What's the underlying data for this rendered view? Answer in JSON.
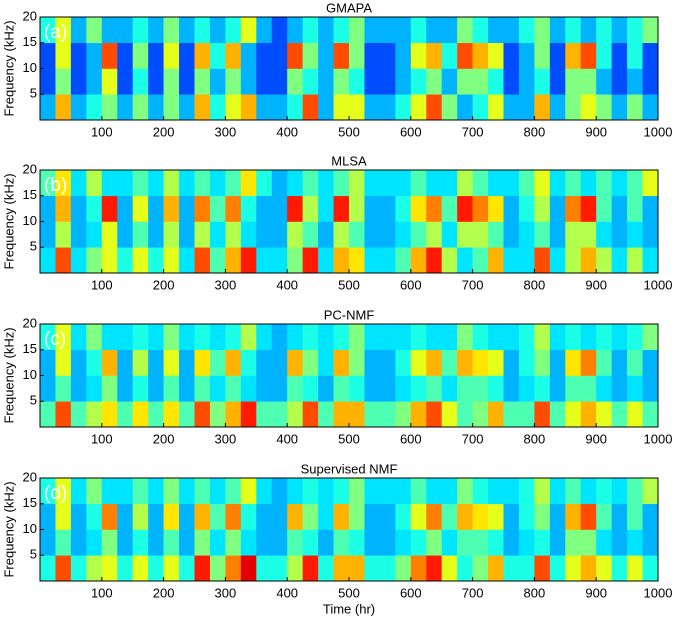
{
  "chart_data": [
    {
      "type": "heatmap",
      "title": "GMAPA",
      "panel_label": "(a)",
      "ylabel": "Frequency (kHz)",
      "colormap": "jet",
      "xlim": [
        0,
        1000
      ],
      "xticks": [
        100,
        200,
        300,
        400,
        500,
        600,
        700,
        800,
        900,
        1000
      ],
      "ylim": [
        0,
        20
      ],
      "yticks": [
        5,
        10,
        15,
        20
      ],
      "xbins": [
        0,
        25,
        50,
        75,
        100,
        125,
        150,
        175,
        200,
        225,
        250,
        275,
        300,
        325,
        350,
        375,
        400,
        425,
        450,
        475,
        500,
        525,
        550,
        575,
        600,
        625,
        650,
        675,
        700,
        725,
        750,
        775,
        800,
        825,
        850,
        875,
        900,
        925,
        950,
        975,
        1000
      ],
      "ybins": [
        0,
        5,
        10,
        15,
        20
      ],
      "z": [
        [
          0.3,
          0.7,
          0.3,
          0.4,
          0.5,
          0.3,
          0.5,
          0.3,
          0.5,
          0.3,
          0.7,
          0.4,
          0.6,
          0.7,
          0.3,
          0.3,
          0.4,
          0.8,
          0.3,
          0.6,
          0.6,
          0.3,
          0.3,
          0.4,
          0.6,
          0.8,
          0.5,
          0.3,
          0.4,
          0.6,
          0.3,
          0.3,
          0.7,
          0.3,
          0.5,
          0.6,
          0.5,
          0.3,
          0.5,
          0.3
        ],
        [
          0.2,
          0.5,
          0.2,
          0.3,
          0.6,
          0.2,
          0.4,
          0.2,
          0.5,
          0.2,
          0.5,
          0.3,
          0.5,
          0.3,
          0.2,
          0.2,
          0.5,
          0.4,
          0.3,
          0.5,
          0.4,
          0.2,
          0.2,
          0.3,
          0.4,
          0.5,
          0.3,
          0.5,
          0.5,
          0.4,
          0.2,
          0.3,
          0.4,
          0.2,
          0.5,
          0.5,
          0.3,
          0.2,
          0.3,
          0.2
        ],
        [
          0.2,
          0.6,
          0.2,
          0.3,
          0.8,
          0.2,
          0.5,
          0.2,
          0.6,
          0.2,
          0.7,
          0.4,
          0.7,
          0.3,
          0.2,
          0.2,
          0.8,
          0.5,
          0.3,
          0.8,
          0.5,
          0.2,
          0.2,
          0.3,
          0.6,
          0.7,
          0.4,
          0.8,
          0.7,
          0.6,
          0.2,
          0.3,
          0.5,
          0.2,
          0.7,
          0.8,
          0.4,
          0.2,
          0.4,
          0.2
        ],
        [
          0.4,
          0.6,
          0.3,
          0.5,
          0.3,
          0.3,
          0.4,
          0.3,
          0.5,
          0.3,
          0.4,
          0.3,
          0.4,
          0.6,
          0.3,
          0.2,
          0.3,
          0.4,
          0.3,
          0.4,
          0.5,
          0.3,
          0.3,
          0.3,
          0.4,
          0.3,
          0.3,
          0.5,
          0.4,
          0.3,
          0.3,
          0.4,
          0.5,
          0.3,
          0.4,
          0.3,
          0.4,
          0.3,
          0.4,
          0.5
        ]
      ]
    },
    {
      "type": "heatmap",
      "title": "MLSA",
      "panel_label": "(b)",
      "ylabel": "Frequency (kHz)",
      "colormap": "jet",
      "xlim": [
        0,
        1000
      ],
      "xticks": [
        100,
        200,
        300,
        400,
        500,
        600,
        700,
        800,
        900,
        1000
      ],
      "ylim": [
        0,
        20
      ],
      "yticks": [
        5,
        10,
        15,
        20
      ],
      "xbins": [
        0,
        25,
        50,
        75,
        100,
        125,
        150,
        175,
        200,
        225,
        250,
        275,
        300,
        325,
        350,
        375,
        400,
        425,
        450,
        475,
        500,
        525,
        550,
        575,
        600,
        625,
        650,
        675,
        700,
        725,
        750,
        775,
        800,
        825,
        850,
        875,
        900,
        925,
        950,
        975,
        1000
      ],
      "ybins": [
        0,
        5,
        10,
        15,
        20
      ],
      "z": [
        [
          0.35,
          0.8,
          0.35,
          0.5,
          0.6,
          0.4,
          0.6,
          0.4,
          0.6,
          0.35,
          0.8,
          0.45,
          0.7,
          0.85,
          0.35,
          0.35,
          0.5,
          0.85,
          0.35,
          0.7,
          0.65,
          0.35,
          0.35,
          0.45,
          0.7,
          0.85,
          0.55,
          0.35,
          0.45,
          0.7,
          0.35,
          0.35,
          0.8,
          0.35,
          0.55,
          0.7,
          0.55,
          0.35,
          0.55,
          0.35
        ],
        [
          0.3,
          0.55,
          0.3,
          0.35,
          0.6,
          0.3,
          0.45,
          0.3,
          0.55,
          0.3,
          0.55,
          0.35,
          0.55,
          0.35,
          0.3,
          0.3,
          0.55,
          0.45,
          0.3,
          0.55,
          0.45,
          0.3,
          0.3,
          0.35,
          0.45,
          0.55,
          0.35,
          0.55,
          0.55,
          0.45,
          0.3,
          0.35,
          0.45,
          0.3,
          0.55,
          0.55,
          0.35,
          0.3,
          0.35,
          0.3
        ],
        [
          0.3,
          0.7,
          0.3,
          0.4,
          0.85,
          0.3,
          0.6,
          0.3,
          0.7,
          0.3,
          0.75,
          0.45,
          0.75,
          0.4,
          0.3,
          0.3,
          0.85,
          0.55,
          0.35,
          0.85,
          0.55,
          0.3,
          0.3,
          0.4,
          0.65,
          0.75,
          0.45,
          0.85,
          0.75,
          0.65,
          0.3,
          0.4,
          0.55,
          0.3,
          0.75,
          0.85,
          0.45,
          0.3,
          0.45,
          0.3
        ],
        [
          0.45,
          0.65,
          0.35,
          0.55,
          0.35,
          0.35,
          0.45,
          0.35,
          0.55,
          0.35,
          0.45,
          0.35,
          0.45,
          0.65,
          0.4,
          0.3,
          0.35,
          0.45,
          0.35,
          0.45,
          0.55,
          0.35,
          0.35,
          0.35,
          0.45,
          0.35,
          0.35,
          0.55,
          0.45,
          0.35,
          0.35,
          0.45,
          0.6,
          0.35,
          0.45,
          0.35,
          0.45,
          0.35,
          0.45,
          0.6
        ]
      ]
    },
    {
      "type": "heatmap",
      "title": "PC-NMF",
      "panel_label": "(c)",
      "ylabel": "Frequency (kHz)",
      "colormap": "jet",
      "xlim": [
        0,
        1000
      ],
      "xticks": [
        100,
        200,
        300,
        400,
        500,
        600,
        700,
        800,
        900,
        1000
      ],
      "ylim": [
        0,
        20
      ],
      "yticks": [
        5,
        10,
        15,
        20
      ],
      "xbins": [
        0,
        25,
        50,
        75,
        100,
        125,
        150,
        175,
        200,
        225,
        250,
        275,
        300,
        325,
        350,
        375,
        400,
        425,
        450,
        475,
        500,
        525,
        550,
        575,
        600,
        625,
        650,
        675,
        700,
        725,
        750,
        775,
        800,
        825,
        850,
        875,
        900,
        925,
        950,
        975,
        1000
      ],
      "ybins": [
        0,
        5,
        10,
        15,
        20
      ],
      "z": [
        [
          0.45,
          0.8,
          0.45,
          0.55,
          0.65,
          0.45,
          0.65,
          0.45,
          0.65,
          0.45,
          0.8,
          0.5,
          0.7,
          0.85,
          0.45,
          0.45,
          0.55,
          0.8,
          0.45,
          0.7,
          0.7,
          0.45,
          0.45,
          0.5,
          0.7,
          0.8,
          0.6,
          0.45,
          0.5,
          0.7,
          0.45,
          0.45,
          0.8,
          0.45,
          0.6,
          0.7,
          0.6,
          0.45,
          0.6,
          0.45
        ],
        [
          0.3,
          0.45,
          0.3,
          0.35,
          0.5,
          0.3,
          0.4,
          0.3,
          0.45,
          0.3,
          0.45,
          0.35,
          0.45,
          0.35,
          0.3,
          0.3,
          0.45,
          0.4,
          0.3,
          0.45,
          0.4,
          0.3,
          0.3,
          0.35,
          0.4,
          0.45,
          0.35,
          0.45,
          0.45,
          0.4,
          0.3,
          0.35,
          0.4,
          0.3,
          0.45,
          0.45,
          0.35,
          0.3,
          0.35,
          0.3
        ],
        [
          0.3,
          0.6,
          0.3,
          0.4,
          0.7,
          0.3,
          0.55,
          0.3,
          0.6,
          0.3,
          0.65,
          0.45,
          0.7,
          0.4,
          0.3,
          0.3,
          0.7,
          0.5,
          0.35,
          0.7,
          0.5,
          0.3,
          0.3,
          0.4,
          0.6,
          0.7,
          0.45,
          0.7,
          0.65,
          0.6,
          0.3,
          0.4,
          0.5,
          0.3,
          0.65,
          0.75,
          0.45,
          0.3,
          0.45,
          0.3
        ],
        [
          0.4,
          0.6,
          0.35,
          0.5,
          0.35,
          0.35,
          0.4,
          0.35,
          0.5,
          0.35,
          0.4,
          0.35,
          0.4,
          0.55,
          0.35,
          0.3,
          0.35,
          0.4,
          0.35,
          0.4,
          0.5,
          0.35,
          0.35,
          0.35,
          0.4,
          0.35,
          0.35,
          0.5,
          0.4,
          0.35,
          0.35,
          0.4,
          0.55,
          0.35,
          0.4,
          0.35,
          0.4,
          0.35,
          0.4,
          0.5
        ]
      ]
    },
    {
      "type": "heatmap",
      "title": "Supervised NMF",
      "panel_label": "(d)",
      "xlabel": "Time (hr)",
      "ylabel": "Frequency (kHz)",
      "colormap": "jet",
      "xlim": [
        0,
        1000
      ],
      "xticks": [
        100,
        200,
        300,
        400,
        500,
        600,
        700,
        800,
        900,
        1000
      ],
      "ylim": [
        0,
        20
      ],
      "yticks": [
        5,
        10,
        15,
        20
      ],
      "xbins": [
        0,
        25,
        50,
        75,
        100,
        125,
        150,
        175,
        200,
        225,
        250,
        275,
        300,
        325,
        350,
        375,
        400,
        425,
        450,
        475,
        500,
        525,
        550,
        575,
        600,
        625,
        650,
        675,
        700,
        725,
        750,
        775,
        800,
        825,
        850,
        875,
        900,
        925,
        950,
        975,
        1000
      ],
      "ybins": [
        0,
        5,
        10,
        15,
        20
      ],
      "z": [
        [
          0.4,
          0.8,
          0.4,
          0.55,
          0.6,
          0.4,
          0.6,
          0.4,
          0.6,
          0.4,
          0.85,
          0.5,
          0.75,
          0.9,
          0.4,
          0.4,
          0.55,
          0.85,
          0.4,
          0.7,
          0.7,
          0.4,
          0.4,
          0.5,
          0.75,
          0.85,
          0.6,
          0.4,
          0.5,
          0.7,
          0.4,
          0.4,
          0.8,
          0.4,
          0.6,
          0.7,
          0.6,
          0.4,
          0.6,
          0.4
        ],
        [
          0.3,
          0.45,
          0.3,
          0.35,
          0.5,
          0.3,
          0.4,
          0.3,
          0.45,
          0.3,
          0.5,
          0.35,
          0.5,
          0.35,
          0.3,
          0.3,
          0.45,
          0.4,
          0.3,
          0.45,
          0.4,
          0.3,
          0.3,
          0.35,
          0.4,
          0.5,
          0.35,
          0.45,
          0.45,
          0.4,
          0.3,
          0.35,
          0.4,
          0.3,
          0.5,
          0.5,
          0.35,
          0.3,
          0.35,
          0.3
        ],
        [
          0.3,
          0.6,
          0.3,
          0.4,
          0.75,
          0.3,
          0.55,
          0.3,
          0.65,
          0.3,
          0.7,
          0.45,
          0.75,
          0.4,
          0.3,
          0.3,
          0.7,
          0.5,
          0.35,
          0.7,
          0.5,
          0.3,
          0.3,
          0.4,
          0.6,
          0.75,
          0.45,
          0.7,
          0.65,
          0.6,
          0.3,
          0.4,
          0.5,
          0.3,
          0.7,
          0.8,
          0.45,
          0.3,
          0.45,
          0.3
        ],
        [
          0.4,
          0.6,
          0.35,
          0.5,
          0.35,
          0.35,
          0.45,
          0.35,
          0.5,
          0.35,
          0.45,
          0.35,
          0.45,
          0.6,
          0.35,
          0.3,
          0.35,
          0.4,
          0.35,
          0.4,
          0.5,
          0.35,
          0.35,
          0.35,
          0.45,
          0.35,
          0.35,
          0.5,
          0.4,
          0.35,
          0.35,
          0.4,
          0.55,
          0.35,
          0.45,
          0.35,
          0.4,
          0.35,
          0.45,
          0.55
        ]
      ]
    }
  ]
}
